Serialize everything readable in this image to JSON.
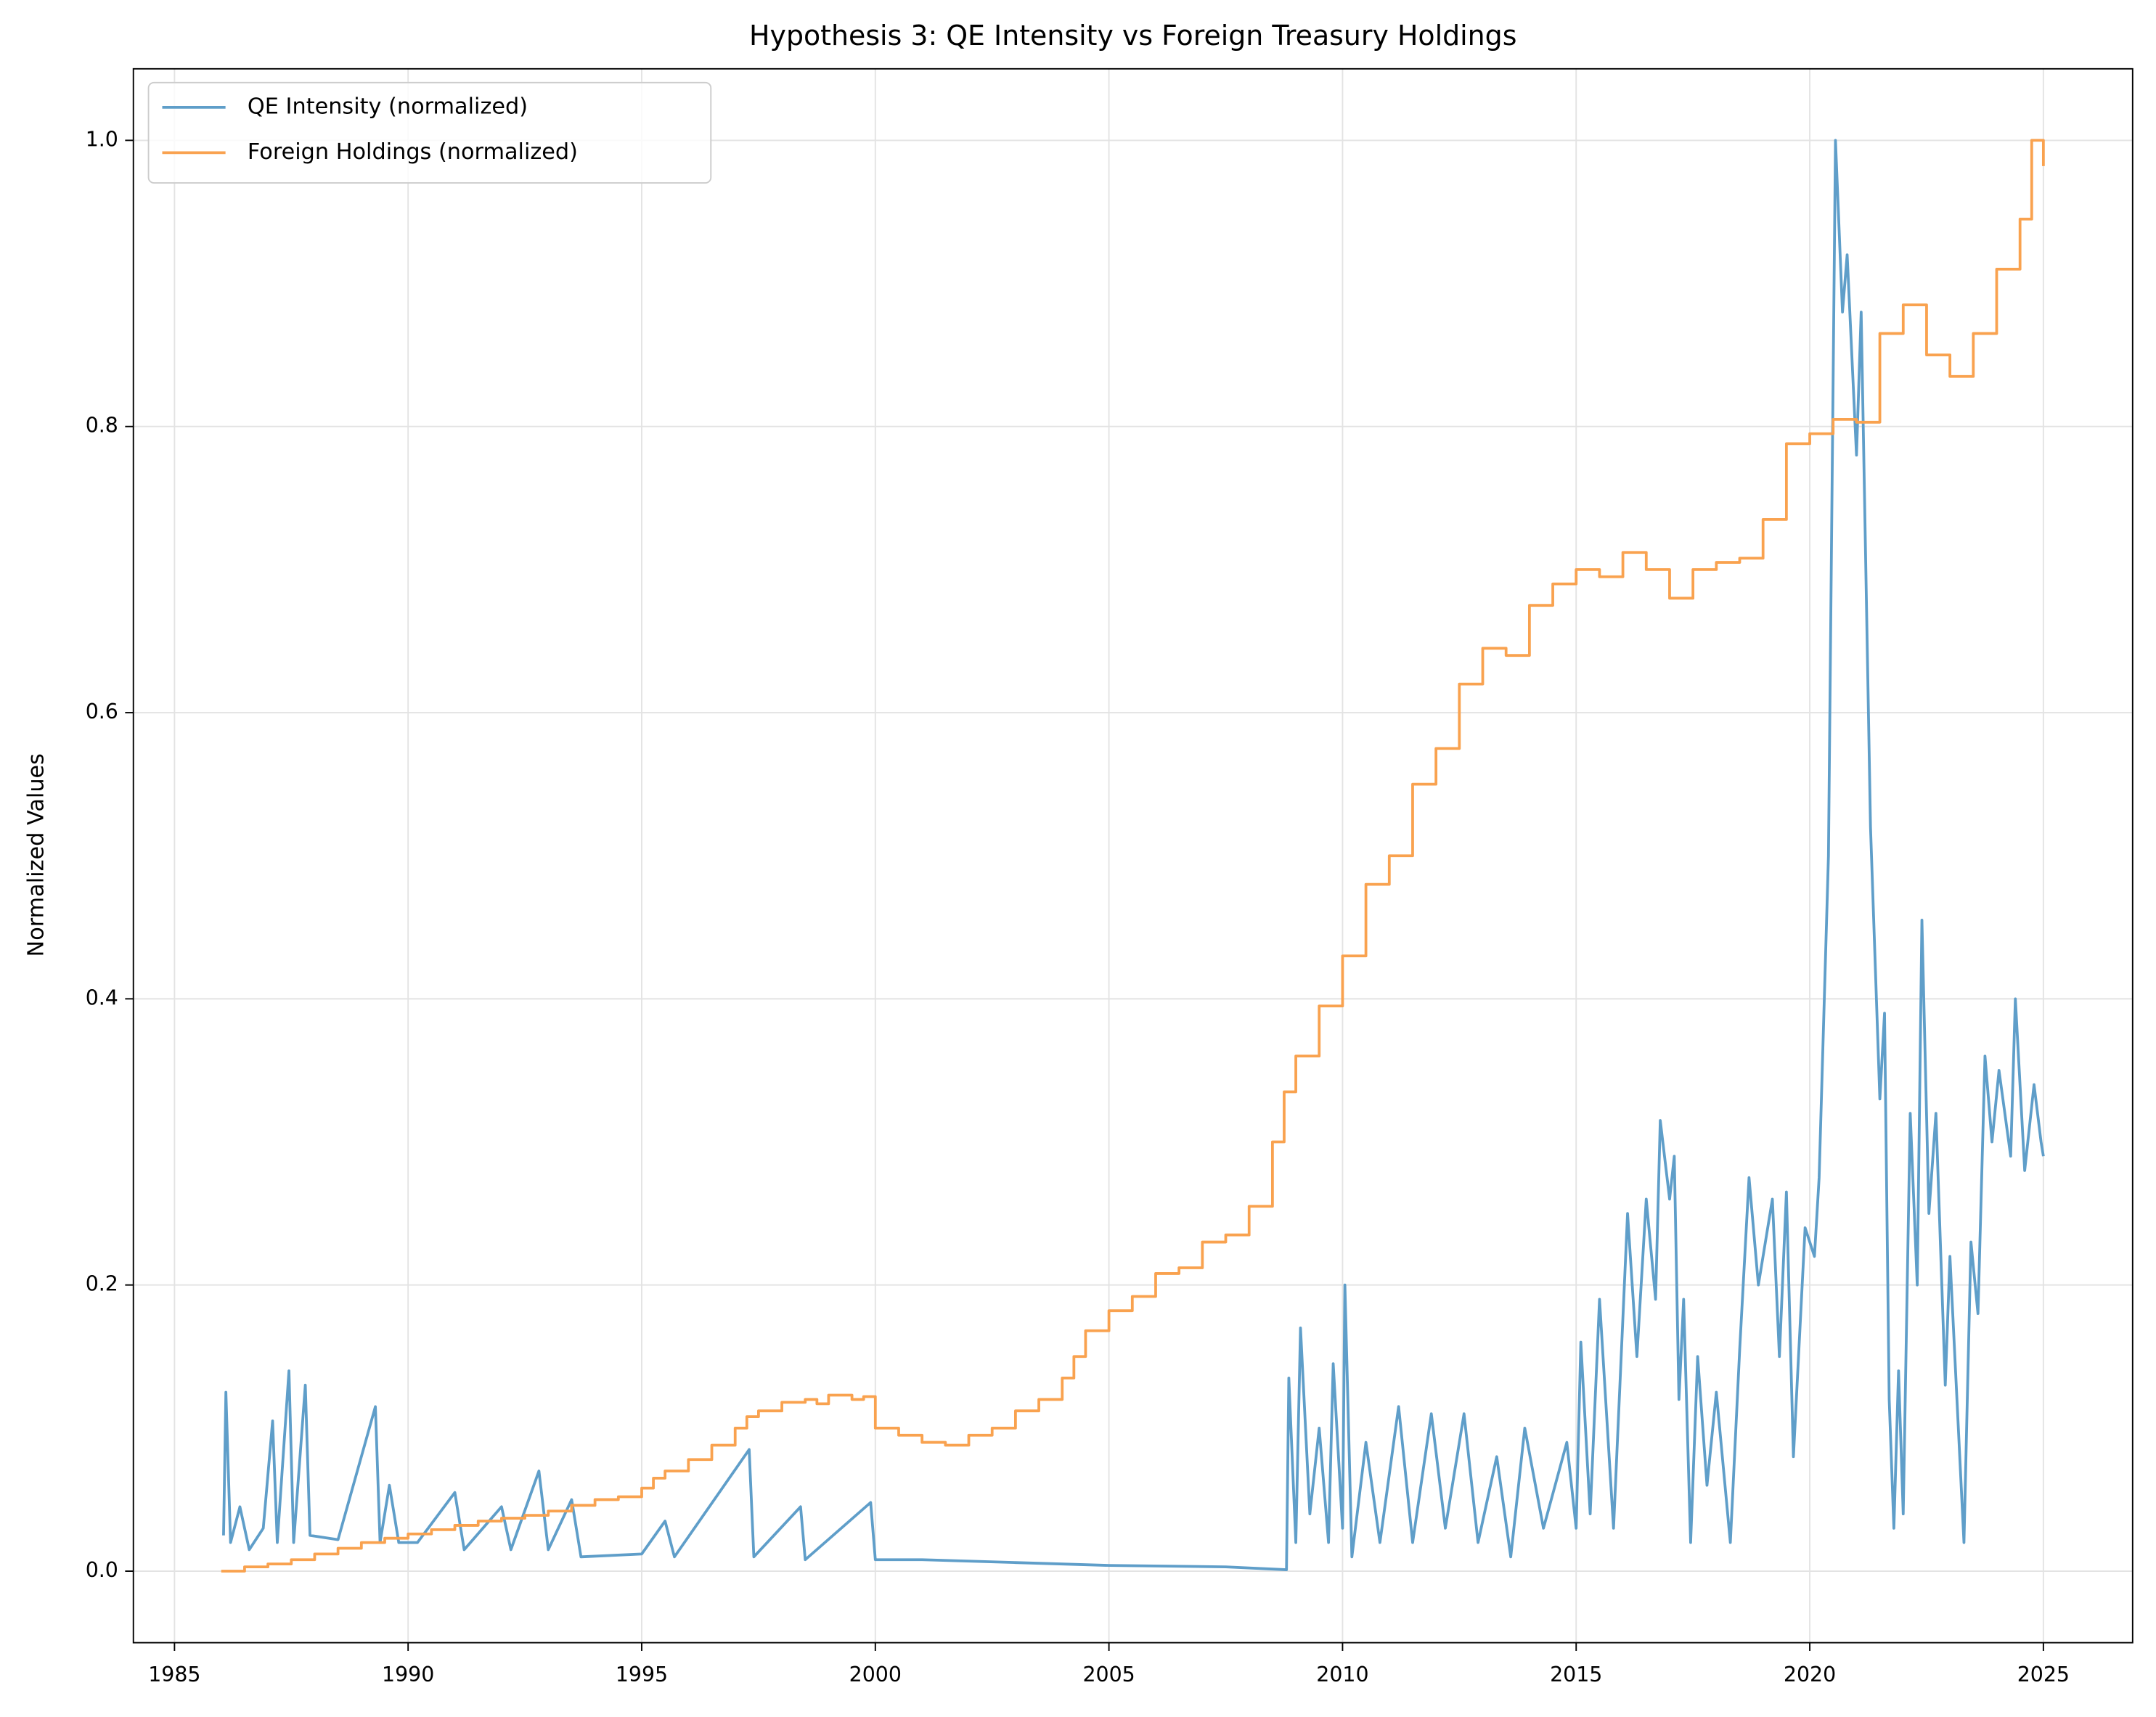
{
  "chart_data": {
    "type": "line",
    "title": "Hypothesis 3: QE Intensity vs Foreign Treasury Holdings",
    "y_label": "Normalized Values",
    "xlim": [
      1984.12,
      2026.91
    ],
    "ylim": [
      -0.05,
      1.05
    ],
    "xticks": [
      1985,
      1990,
      1995,
      2000,
      2005,
      2010,
      2015,
      2020,
      2025
    ],
    "yticks": [
      {
        "value": 0,
        "label": "0.0"
      },
      0.2,
      0.4,
      0.6,
      0.8,
      {
        "value": 1,
        "label": "1.0"
      }
    ],
    "grid": true,
    "legend": "upper-left",
    "series": [
      {
        "name": "QE Intensity (normalized)",
        "color": "#5f9ec9",
        "drawstyle": "default",
        "x": [
          1986.05,
          1986.1,
          1986.2,
          1986.4,
          1986.6,
          1986.9,
          1987.1,
          1987.2,
          1987.45,
          1987.55,
          1987.8,
          1987.9,
          1988.5,
          1989.3,
          1989.4,
          1989.6,
          1989.8,
          1990.2,
          1991.0,
          1991.2,
          1992.0,
          1992.2,
          1992.8,
          1993.0,
          1993.5,
          1993.7,
          1995.0,
          1995.5,
          1995.7,
          1997.3,
          1997.4,
          1998.4,
          1998.5,
          1999.9,
          2000.0,
          2001.0,
          2003.0,
          2005.0,
          2007.5,
          2008.8,
          2008.85,
          2009.0,
          2009.1,
          2009.3,
          2009.5,
          2009.7,
          2009.8,
          2010.0,
          2010.05,
          2010.2,
          2010.5,
          2010.8,
          2011.2,
          2011.5,
          2011.9,
          2012.2,
          2012.6,
          2012.9,
          2013.3,
          2013.6,
          2013.9,
          2014.3,
          2014.8,
          2015.0,
          2015.1,
          2015.3,
          2015.5,
          2015.8,
          2016.1,
          2016.3,
          2016.5,
          2016.7,
          2016.8,
          2017.0,
          2017.1,
          2017.2,
          2017.3,
          2017.45,
          2017.6,
          2017.8,
          2018.0,
          2018.3,
          2018.5,
          2018.7,
          2018.9,
          2019.2,
          2019.35,
          2019.5,
          2019.65,
          2019.9,
          2020.1,
          2020.2,
          2020.4,
          2020.55,
          2020.7,
          2020.8,
          2021.0,
          2021.1,
          2021.3,
          2021.5,
          2021.6,
          2021.7,
          2021.8,
          2021.9,
          2022.0,
          2022.15,
          2022.3,
          2022.4,
          2022.55,
          2022.7,
          2022.9,
          2023.0,
          2023.15,
          2023.3,
          2023.45,
          2023.6,
          2023.75,
          2023.9,
          2024.05,
          2024.3,
          2024.4,
          2024.6,
          2024.8,
          2024.95,
          2025.0
        ],
        "values": [
          0.025,
          0.125,
          0.02,
          0.045,
          0.015,
          0.03,
          0.105,
          0.02,
          0.14,
          0.02,
          0.13,
          0.025,
          0.022,
          0.115,
          0.02,
          0.06,
          0.02,
          0.02,
          0.055,
          0.015,
          0.045,
          0.015,
          0.07,
          0.015,
          0.05,
          0.01,
          0.012,
          0.035,
          0.01,
          0.085,
          0.01,
          0.045,
          0.008,
          0.048,
          0.008,
          0.008,
          0.006,
          0.004,
          0.003,
          0.001,
          0.135,
          0.02,
          0.17,
          0.04,
          0.1,
          0.02,
          0.145,
          0.03,
          0.2,
          0.01,
          0.09,
          0.02,
          0.115,
          0.02,
          0.11,
          0.03,
          0.11,
          0.02,
          0.08,
          0.01,
          0.1,
          0.03,
          0.09,
          0.03,
          0.16,
          0.04,
          0.19,
          0.03,
          0.25,
          0.15,
          0.26,
          0.19,
          0.315,
          0.26,
          0.29,
          0.12,
          0.19,
          0.02,
          0.15,
          0.06,
          0.125,
          0.02,
          0.155,
          0.275,
          0.2,
          0.26,
          0.15,
          0.265,
          0.08,
          0.24,
          0.22,
          0.275,
          0.5,
          1.0,
          0.88,
          0.92,
          0.78,
          0.88,
          0.52,
          0.33,
          0.39,
          0.12,
          0.03,
          0.14,
          0.04,
          0.32,
          0.2,
          0.455,
          0.25,
          0.32,
          0.13,
          0.22,
          0.12,
          0.02,
          0.23,
          0.18,
          0.36,
          0.3,
          0.35,
          0.29,
          0.4,
          0.28,
          0.34,
          0.3,
          0.29
        ]
      },
      {
        "name": "Foreign Holdings (normalized)",
        "color": "#f9a24f",
        "drawstyle": "steps-post",
        "x": [
          1986.0,
          1986.5,
          1987.0,
          1987.5,
          1988.0,
          1988.5,
          1989.0,
          1989.5,
          1990.0,
          1990.5,
          1991.0,
          1991.5,
          1992.0,
          1992.5,
          1993.0,
          1993.5,
          1994.0,
          1994.5,
          1995.0,
          1995.25,
          1995.5,
          1996.0,
          1996.5,
          1997.0,
          1997.25,
          1997.5,
          1998.0,
          1998.5,
          1998.75,
          1999.0,
          1999.5,
          1999.75,
          2000.0,
          2000.5,
          2001.0,
          2001.5,
          2002.0,
          2002.5,
          2003.0,
          2003.5,
          2004.0,
          2004.25,
          2004.5,
          2005.0,
          2005.5,
          2006.0,
          2006.5,
          2007.0,
          2007.5,
          2008.0,
          2008.5,
          2008.75,
          2009.0,
          2009.5,
          2010.0,
          2010.5,
          2011.0,
          2011.5,
          2012.0,
          2012.5,
          2013.0,
          2013.5,
          2014.0,
          2014.5,
          2015.0,
          2015.5,
          2016.0,
          2016.5,
          2017.0,
          2017.5,
          2018.0,
          2018.5,
          2019.0,
          2019.5,
          2020.0,
          2020.5,
          2021.0,
          2021.5,
          2022.0,
          2022.5,
          2023.0,
          2023.5,
          2024.0,
          2024.5,
          2024.75,
          2025.0
        ],
        "values": [
          0.0,
          0.003,
          0.005,
          0.008,
          0.012,
          0.016,
          0.02,
          0.023,
          0.026,
          0.029,
          0.032,
          0.035,
          0.037,
          0.039,
          0.042,
          0.046,
          0.05,
          0.052,
          0.058,
          0.065,
          0.07,
          0.078,
          0.088,
          0.1,
          0.108,
          0.112,
          0.118,
          0.12,
          0.117,
          0.123,
          0.12,
          0.122,
          0.1,
          0.095,
          0.09,
          0.088,
          0.095,
          0.1,
          0.112,
          0.12,
          0.135,
          0.15,
          0.168,
          0.182,
          0.192,
          0.208,
          0.212,
          0.23,
          0.235,
          0.255,
          0.3,
          0.335,
          0.36,
          0.395,
          0.43,
          0.48,
          0.5,
          0.55,
          0.575,
          0.62,
          0.645,
          0.64,
          0.675,
          0.69,
          0.7,
          0.695,
          0.712,
          0.7,
          0.68,
          0.7,
          0.705,
          0.708,
          0.735,
          0.788,
          0.795,
          0.805,
          0.803,
          0.865,
          0.885,
          0.85,
          0.835,
          0.865,
          0.91,
          0.945,
          1.0,
          0.982
        ]
      }
    ]
  }
}
